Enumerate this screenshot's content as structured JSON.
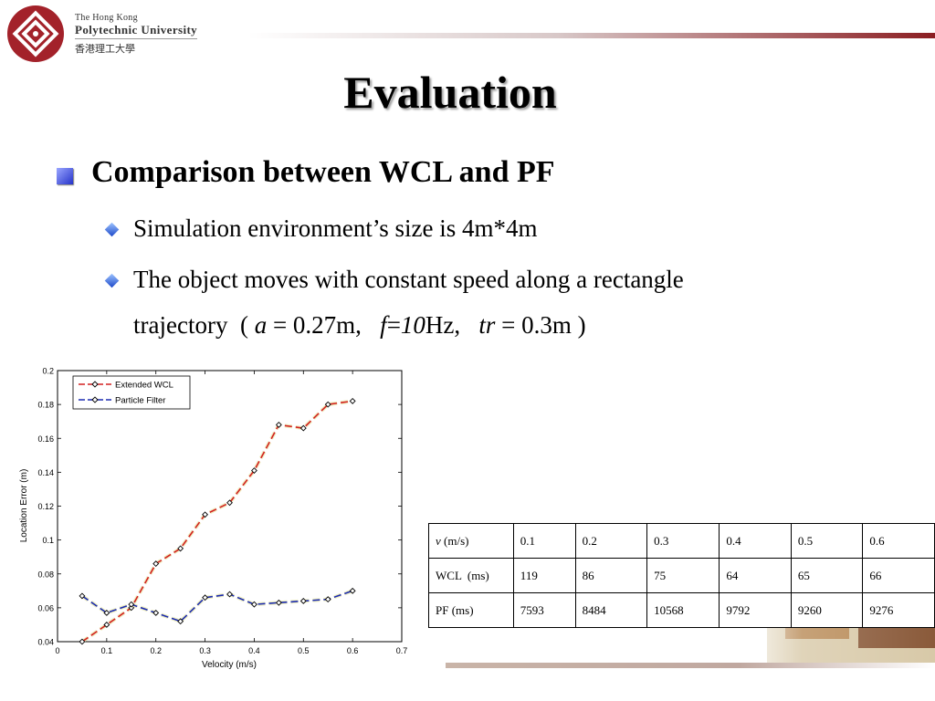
{
  "header": {
    "university_line1": "The Hong Kong",
    "university_line2": "Polytechnic University",
    "university_line3": "香港理工大學",
    "accent_color": "#8b1e22"
  },
  "title": "Evaluation",
  "heading": "Comparison between WCL and PF",
  "bullets": [
    "Simulation environment’s size is 4m*4m",
    "The object moves with constant speed along a rectangle"
  ],
  "trajectory": {
    "prefix": "trajectory  ( ",
    "a_sym": "a",
    "a_val": " = 0.27m,   ",
    "f_sym": "f",
    "f_eq": "=",
    "f_num": "10",
    "f_unit": "Hz,   ",
    "tr_sym": "tr",
    "tr_val": " = 0.3m )"
  },
  "table": {
    "rows": [
      {
        "label_sym": "v",
        "label": " (m/s)",
        "values": [
          "0.1",
          "0.2",
          "0.3",
          "0.4",
          "0.5",
          "0.6"
        ]
      },
      {
        "label_sym": "",
        "label": "WCL  (ms)",
        "values": [
          "119",
          "86",
          "75",
          "64",
          "65",
          "66"
        ]
      },
      {
        "label_sym": "",
        "label": "PF (ms)",
        "values": [
          "7593",
          "8484",
          "10568",
          "9792",
          "9260",
          "9276"
        ]
      }
    ]
  },
  "chart_data": {
    "type": "line",
    "xlabel": "Velocity (m/s)",
    "ylabel": "Location Error (m)",
    "xlim": [
      0,
      0.7
    ],
    "ylim": [
      0.04,
      0.2
    ],
    "x_ticks": [
      "0",
      "0.1",
      "0.2",
      "0.3",
      "0.4",
      "0.5",
      "0.6",
      "0.7"
    ],
    "y_ticks": [
      "0.04",
      "0.06",
      "0.08",
      "0.1",
      "0.12",
      "0.14",
      "0.16",
      "0.18",
      "0.2"
    ],
    "legend_position": "top-left",
    "x": [
      0.05,
      0.1,
      0.15,
      0.2,
      0.25,
      0.3,
      0.35,
      0.4,
      0.45,
      0.5,
      0.55,
      0.6
    ],
    "series": [
      {
        "name": "Extended WCL",
        "color": "#d42020",
        "values": [
          0.04,
          0.05,
          0.06,
          0.086,
          0.095,
          0.115,
          0.122,
          0.141,
          0.168,
          0.166,
          0.18,
          0.182
        ]
      },
      {
        "name": "Particle Filter",
        "color": "#1c2bb0",
        "values": [
          0.067,
          0.057,
          0.062,
          0.057,
          0.052,
          0.066,
          0.068,
          0.062,
          0.063,
          0.064,
          0.065,
          0.07
        ]
      }
    ]
  }
}
